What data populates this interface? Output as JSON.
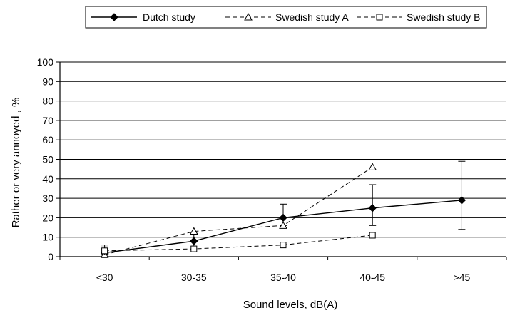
{
  "chart_data": {
    "type": "line",
    "title": "",
    "xlabel": "Sound levels, dB(A)",
    "ylabel": "Rather or very annoyed , %",
    "categories": [
      "<30",
      "30-35",
      "35-40",
      "40-45",
      ">45"
    ],
    "ylim": [
      0,
      100
    ],
    "yticks": [
      0,
      10,
      20,
      30,
      40,
      50,
      60,
      70,
      80,
      90,
      100
    ],
    "grid": "horizontal",
    "legend": "top",
    "series": [
      {
        "name": "Dutch study",
        "marker": "diamond-filled",
        "line": "solid",
        "color": "#000000",
        "values": [
          2,
          8,
          20,
          25,
          29
        ],
        "error_low": [
          1,
          5,
          16,
          16,
          14
        ],
        "error_high": [
          5,
          12,
          27,
          37,
          49
        ]
      },
      {
        "name": "Swedish study A",
        "marker": "triangle-open",
        "line": "dashed",
        "color": "#000000",
        "values": [
          1,
          13,
          16,
          46,
          null
        ]
      },
      {
        "name": "Swedish study B",
        "marker": "square-open",
        "line": "dashed",
        "color": "#000000",
        "values": [
          3,
          4,
          6,
          11,
          null
        ],
        "error_low": [
          1,
          null,
          null,
          null,
          null
        ],
        "error_high": [
          6,
          null,
          null,
          null,
          null
        ]
      }
    ]
  }
}
